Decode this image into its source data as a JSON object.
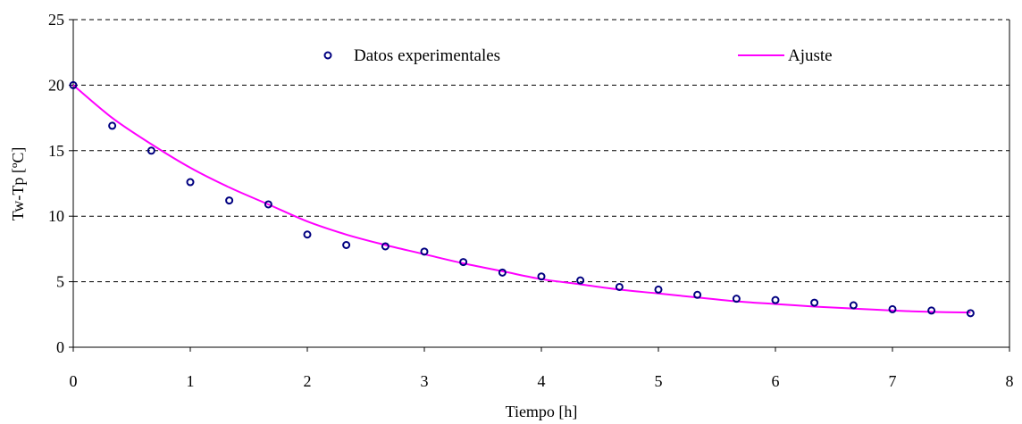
{
  "chart_data": {
    "type": "scatter",
    "title": "",
    "xlabel": "Tiempo [h]",
    "ylabel": "Tw-Tp [ºC]",
    "xlim": [
      0,
      8
    ],
    "ylim": [
      0,
      25
    ],
    "x_ticks": [
      "0",
      "1",
      "2",
      "3",
      "4",
      "5",
      "6",
      "7",
      "8"
    ],
    "y_ticks": [
      "0",
      "5",
      "10",
      "15",
      "20",
      "25"
    ],
    "grid": "horizontal dashed",
    "legend_position": "top",
    "series": [
      {
        "name": "Datos experimentales",
        "kind": "scatter",
        "marker": "open-circle",
        "color": "#000080",
        "x": [
          0,
          0.333,
          0.667,
          1.0,
          1.333,
          1.667,
          2.0,
          2.333,
          2.667,
          3.0,
          3.333,
          3.667,
          4.0,
          4.333,
          4.667,
          5.0,
          5.333,
          5.667,
          6.0,
          6.333,
          6.667,
          7.0,
          7.333,
          7.667
        ],
        "y": [
          20.0,
          16.9,
          15.0,
          12.6,
          11.2,
          10.9,
          8.6,
          7.8,
          7.7,
          7.3,
          6.5,
          5.7,
          5.4,
          5.1,
          4.6,
          4.4,
          4.0,
          3.7,
          3.6,
          3.4,
          3.2,
          2.9,
          2.8,
          2.6
        ]
      },
      {
        "name": "Ajuste",
        "kind": "line",
        "color": "#ff00ff",
        "x": [
          0,
          0.333,
          0.667,
          1.0,
          1.333,
          1.667,
          2.0,
          2.333,
          2.667,
          3.0,
          3.333,
          3.667,
          4.0,
          4.333,
          4.667,
          5.0,
          5.333,
          5.667,
          6.0,
          6.333,
          6.667,
          7.0,
          7.333,
          7.667
        ],
        "y": [
          20.0,
          17.5,
          15.5,
          13.7,
          12.2,
          10.9,
          9.6,
          8.6,
          7.8,
          7.1,
          6.4,
          5.8,
          5.2,
          4.8,
          4.4,
          4.1,
          3.8,
          3.5,
          3.3,
          3.1,
          2.95,
          2.8,
          2.7,
          2.65
        ]
      }
    ]
  }
}
